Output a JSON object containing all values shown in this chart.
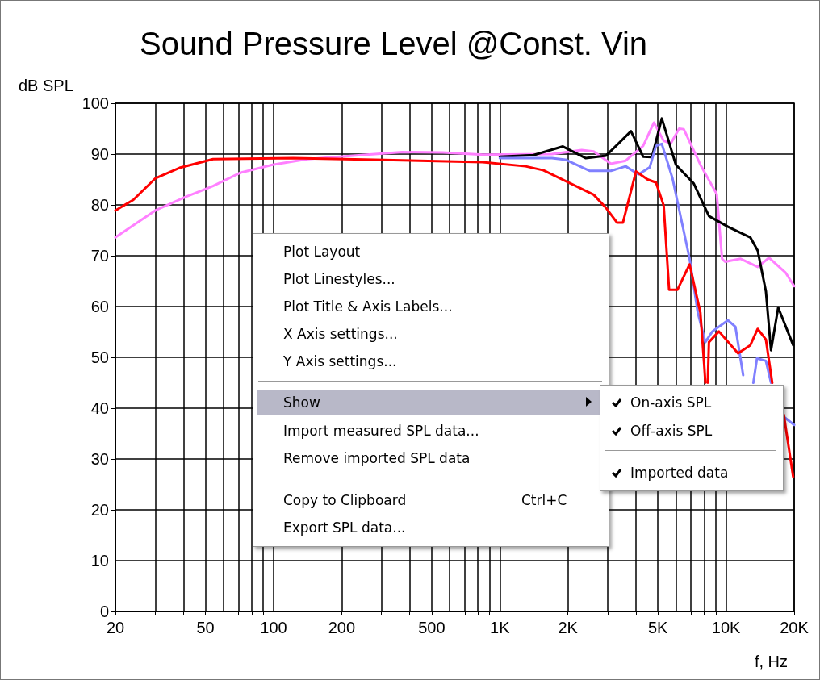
{
  "chart_data": {
    "type": "line",
    "title": "Sound Pressure Level @Const. Vin",
    "xlabel": "f, Hz",
    "ylabel": "dB SPL",
    "log": "x",
    "grid": true,
    "marker": "none",
    "line_style": "solid",
    "xlim": [
      20,
      20000
    ],
    "ylim": [
      0,
      100
    ],
    "yticks": [
      0,
      10,
      20,
      30,
      40,
      50,
      60,
      70,
      80,
      90,
      100
    ],
    "xticks": [
      {
        "value": 20,
        "label": "20"
      },
      {
        "value": 30,
        "label": null
      },
      {
        "value": 40,
        "label": null
      },
      {
        "value": 50,
        "label": "50"
      },
      {
        "value": 60,
        "label": null
      },
      {
        "value": 70,
        "label": null
      },
      {
        "value": 80,
        "label": null
      },
      {
        "value": 90,
        "label": null
      },
      {
        "value": 100,
        "label": "100"
      },
      {
        "value": 200,
        "label": "200"
      },
      {
        "value": 300,
        "label": null
      },
      {
        "value": 400,
        "label": null
      },
      {
        "value": 500,
        "label": "500"
      },
      {
        "value": 600,
        "label": null
      },
      {
        "value": 700,
        "label": null
      },
      {
        "value": 800,
        "label": null
      },
      {
        "value": 900,
        "label": null
      },
      {
        "value": 1000,
        "label": "1K"
      },
      {
        "value": 2000,
        "label": "2K"
      },
      {
        "value": 3000,
        "label": null
      },
      {
        "value": 4000,
        "label": null
      },
      {
        "value": 5000,
        "label": "5K"
      },
      {
        "value": 6000,
        "label": null
      },
      {
        "value": 7000,
        "label": null
      },
      {
        "value": 8000,
        "label": null
      },
      {
        "value": 9000,
        "label": null
      },
      {
        "value": 10000,
        "label": "10K"
      },
      {
        "value": 20000,
        "label": "20K"
      }
    ],
    "series": [
      {
        "color": "#ff80ff",
        "x": [
          20,
          30,
          41,
          54,
          71,
          99,
          141,
          213,
          370,
          560,
          840,
          1700,
          2300,
          2600,
          3100,
          3600,
          4300,
          4800,
          5300,
          5700,
          6200,
          6500,
          7700,
          9100,
          9600,
          9900,
          11600,
          13800,
          15500,
          18300,
          20000
        ],
        "values": [
          73.6,
          78.9,
          81.6,
          83.7,
          86.3,
          87.9,
          89,
          89.6,
          90.4,
          90.3,
          89.9,
          90,
          90.8,
          90.5,
          88.1,
          88.7,
          91.6,
          96.2,
          92.6,
          92.1,
          95,
          94.9,
          87.9,
          82.1,
          69.4,
          68.8,
          69.4,
          67.8,
          69.6,
          66.7,
          64
        ]
      },
      {
        "color": "#000000",
        "x": [
          1000,
          1410,
          1900,
          2400,
          2950,
          3800,
          4300,
          4700,
          5200,
          6000,
          7200,
          8400,
          10200,
          12800,
          13800,
          15000,
          15800,
          17000,
          19800
        ],
        "values": [
          89.5,
          89.8,
          91.5,
          89.2,
          89.7,
          94.5,
          89.5,
          89.4,
          97,
          87.9,
          84.2,
          77.8,
          75.7,
          73.6,
          71,
          63,
          51.4,
          59.8,
          52.4
        ]
      },
      {
        "color": "#8080ff",
        "x": [
          1000,
          1700,
          1950,
          2500,
          3100,
          3600,
          4100,
          4600,
          4900,
          5200,
          5800,
          6900,
          7500,
          8100,
          8700,
          10200,
          11000,
          11900,
          12400,
          13200,
          13700,
          15000,
          15800,
          16500,
          18000,
          20000
        ],
        "values": [
          89.2,
          89.2,
          88.9,
          86.7,
          86.7,
          87.6,
          86,
          87.4,
          91.6,
          92,
          85.2,
          69.4,
          58.8,
          53,
          55.1,
          57.3,
          56,
          46.5,
          null,
          45,
          49.8,
          49.3,
          45,
          null,
          38.3,
          36.7
        ]
      },
      {
        "color": "#ff0000",
        "x": [
          20,
          24,
          30,
          38.4,
          54,
          122,
          280,
          840,
          1300,
          1560,
          1950,
          2600,
          2950,
          3300,
          3500,
          4000,
          4500,
          4900,
          5300,
          5600,
          6100,
          6900,
          7700,
          8000,
          8100,
          8200,
          8300,
          8400,
          9300,
          11300,
          12800,
          13800,
          15000,
          16000,
          16600,
          18000,
          19800
        ],
        "values": [
          78.9,
          81,
          85.2,
          87.3,
          89,
          89.2,
          88.9,
          88.4,
          87.6,
          86.8,
          84.7,
          82,
          79.4,
          76.5,
          76.5,
          86.6,
          85,
          84.4,
          79.9,
          63.3,
          63.3,
          68.3,
          58.8,
          48.7,
          45,
          null,
          45,
          53,
          55.1,
          50.8,
          52.4,
          55.6,
          53.5,
          45,
          null,
          38.7,
          26.5
        ]
      }
    ],
    "annotations": [
      "Plot Layout",
      "Plot Linestyles...",
      "Plot Title & Axis Labels...",
      "X Axis settings...",
      "Y Axis settings...",
      "Show",
      "Import measured SPL data...",
      "Remove imported SPL data",
      "Copy to Clipboard",
      "Ctrl+C",
      "Export SPL data...",
      "On-axis SPL",
      "Off-axis SPL",
      "Imported data"
    ]
  }
}
